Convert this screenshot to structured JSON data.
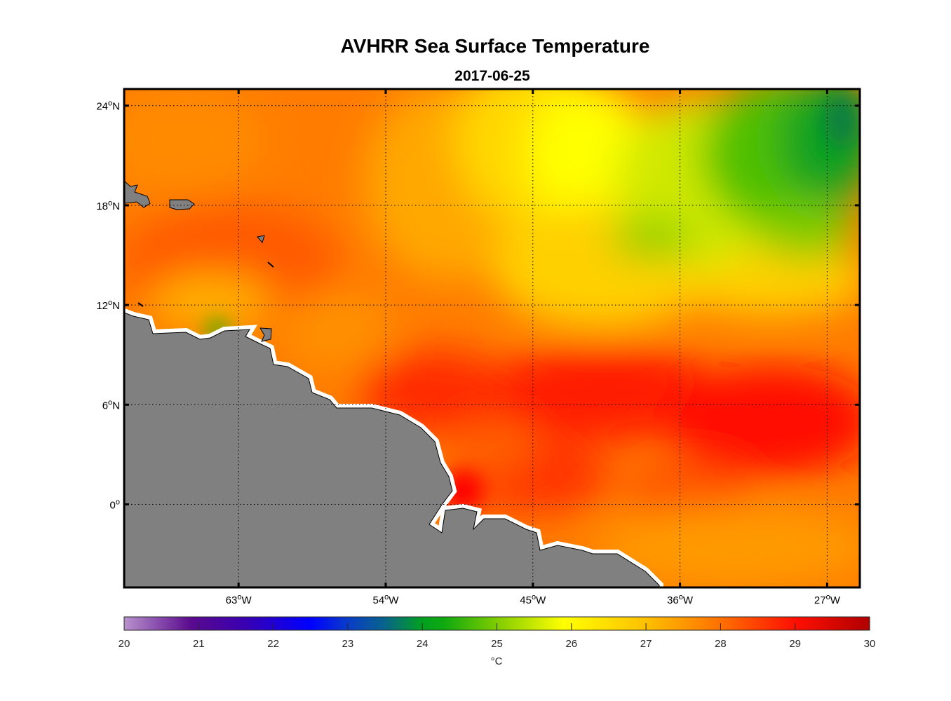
{
  "title": "AVHRR Sea Surface Temperature",
  "subtitle": "2017-06-25",
  "chart_data": {
    "type": "heatmap",
    "title": "AVHRR Sea Surface Temperature",
    "subtitle": "2017-06-25",
    "lon_range": [
      -70,
      -25
    ],
    "lat_range": [
      -5,
      25
    ],
    "grid": true,
    "xticks": [
      {
        "value": -63,
        "deg": "63",
        "hemi": "W"
      },
      {
        "value": -54,
        "deg": "54",
        "hemi": "W"
      },
      {
        "value": -45,
        "deg": "45",
        "hemi": "W"
      },
      {
        "value": -36,
        "deg": "36",
        "hemi": "W"
      },
      {
        "value": -27,
        "deg": "27",
        "hemi": "W"
      }
    ],
    "yticks": [
      {
        "value": 24,
        "deg": "24",
        "hemi": "N"
      },
      {
        "value": 18,
        "deg": "18",
        "hemi": "N"
      },
      {
        "value": 12,
        "deg": "12",
        "hemi": "N"
      },
      {
        "value": 6,
        "deg": "6",
        "hemi": "N"
      },
      {
        "value": 0,
        "deg": "0",
        "hemi": ""
      }
    ],
    "colorbar": {
      "min": 20,
      "max": 30,
      "ticks": [
        "20",
        "21",
        "22",
        "23",
        "24",
        "25",
        "26",
        "27",
        "28",
        "29",
        "30"
      ],
      "label": "°C",
      "location": "bottom",
      "stops": [
        {
          "v": 20,
          "c": "#b892cc"
        },
        {
          "v": 20.9,
          "c": "#5a0a8e"
        },
        {
          "v": 21.6,
          "c": "#3a00b0"
        },
        {
          "v": 22.5,
          "c": "#0000ff"
        },
        {
          "v": 23,
          "c": "#0a3cc8"
        },
        {
          "v": 23.5,
          "c": "#08648a"
        },
        {
          "v": 24,
          "c": "#00a020"
        },
        {
          "v": 24.3,
          "c": "#10aa10"
        },
        {
          "v": 25,
          "c": "#80cc00"
        },
        {
          "v": 25.9,
          "c": "#ffff00"
        },
        {
          "v": 27,
          "c": "#ffc000"
        },
        {
          "v": 28,
          "c": "#ff7000"
        },
        {
          "v": 29,
          "c": "#ff1000"
        },
        {
          "v": 30,
          "c": "#b00000"
        }
      ]
    },
    "land_color": "#808080",
    "description_values": {
      "min_shown": 24,
      "max_shown": 29.5
    }
  }
}
